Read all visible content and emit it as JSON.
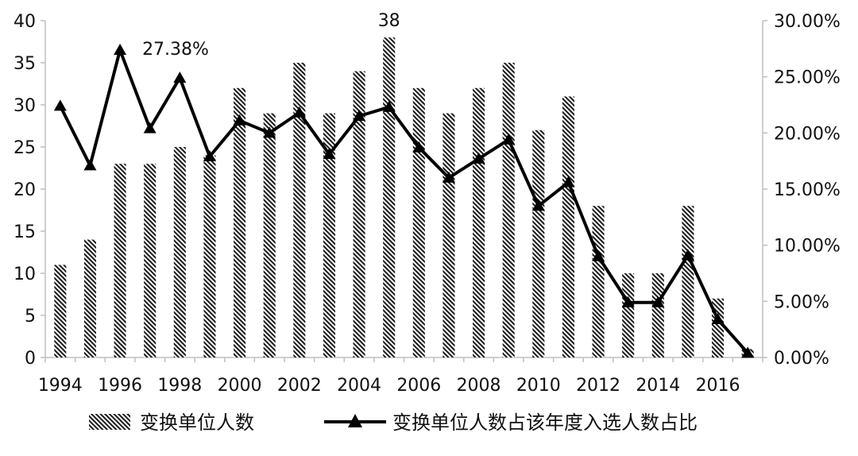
{
  "chart_data": {
    "type": "bar",
    "categories": [
      "1994",
      "1995",
      "1996",
      "1997",
      "1998",
      "1999",
      "2000",
      "2001",
      "2002",
      "2003",
      "2004",
      "2005",
      "2006",
      "2007",
      "2008",
      "2009",
      "2010",
      "2011",
      "2012",
      "2013",
      "2014",
      "2015",
      "2016",
      "2017"
    ],
    "x_tick_labels": [
      "1994",
      "1996",
      "1998",
      "2000",
      "2002",
      "2004",
      "2006",
      "2008",
      "2010",
      "2012",
      "2014",
      "2016"
    ],
    "series": [
      {
        "name": "变换单位人数",
        "type": "bar",
        "axis": "left",
        "pattern": "diagonal-hatch",
        "values": [
          11,
          14,
          23,
          23,
          25,
          24,
          32,
          29,
          35,
          29,
          34,
          38,
          32,
          29,
          32,
          35,
          27,
          31,
          18,
          10,
          10,
          18,
          7,
          1
        ]
      },
      {
        "name": "变换单位人数占该年度入选人数占比",
        "type": "line",
        "axis": "right",
        "marker": "triangle",
        "values": [
          22.4,
          17.1,
          27.38,
          20.4,
          24.9,
          17.9,
          21.1,
          20.0,
          21.8,
          18.1,
          21.5,
          22.3,
          18.7,
          16.0,
          17.7,
          19.4,
          13.5,
          15.6,
          9.0,
          4.9,
          4.9,
          9.1,
          3.4,
          0.4
        ]
      }
    ],
    "y_left": {
      "min": 0,
      "max": 40,
      "ticks": [
        "0",
        "5",
        "10",
        "15",
        "20",
        "25",
        "30",
        "35",
        "40"
      ]
    },
    "y_right": {
      "min": 0,
      "max": 30,
      "ticks": [
        "0.00%",
        "5.00%",
        "10.00%",
        "15.00%",
        "20.00%",
        "25.00%",
        "30.00%"
      ]
    },
    "annotations": [
      {
        "text": "38",
        "category": "2005",
        "series": 0
      },
      {
        "text": "27.38%",
        "category": "1996",
        "series": 1
      }
    ],
    "legend": {
      "position": "bottom"
    },
    "grid": false,
    "colors": {
      "line": "#000000",
      "bar_hatch": "#1a1a1a",
      "axis": "#bfbfbf"
    }
  }
}
